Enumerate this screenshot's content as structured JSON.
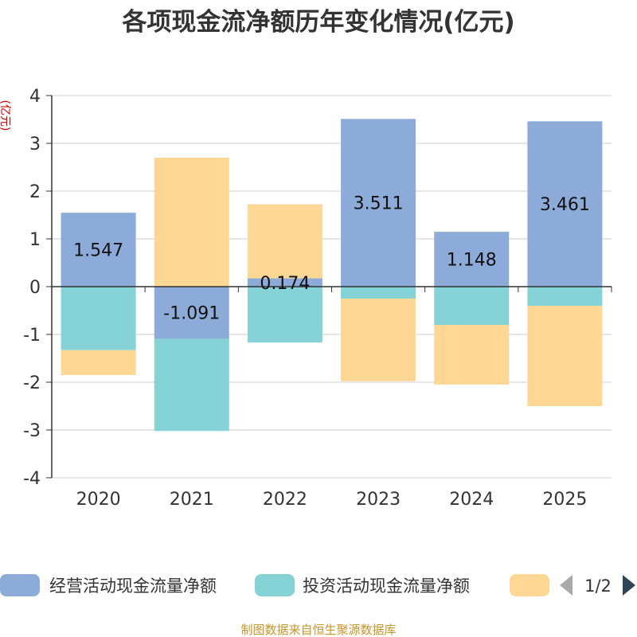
{
  "chart_data": {
    "type": "bar",
    "stacked": true,
    "title": "各项现金流净额历年变化情况(亿元)",
    "ylabel": "(亿元)",
    "xlabel": "",
    "categories": [
      "2020",
      "2021",
      "2022",
      "2023",
      "2024",
      "2025"
    ],
    "ylim": [
      -4,
      4
    ],
    "yticks": [
      4,
      3,
      2,
      1,
      0,
      -1,
      -2,
      -3,
      -4
    ],
    "grid": true,
    "series": [
      {
        "name": "经营活动现金流量净额",
        "color": "#8cabd9",
        "values": [
          1.547,
          -1.091,
          0.174,
          3.511,
          1.148,
          3.461
        ],
        "labels": [
          "1.547",
          "-1.091",
          "0.174",
          "3.511",
          "1.148",
          "3.461"
        ]
      },
      {
        "name": "投资活动现金流量净额",
        "color": "#85d3d6",
        "values": [
          -1.33,
          -1.93,
          -1.17,
          -0.25,
          -0.8,
          -0.4
        ]
      },
      {
        "name": "",
        "color": "#fed795",
        "values": [
          -0.52,
          2.7,
          1.55,
          -1.73,
          -1.25,
          -2.1
        ]
      }
    ],
    "legend": {
      "position": "bottom",
      "page": "1/2"
    },
    "source": "制图数据来自恒生聚源数据库"
  }
}
